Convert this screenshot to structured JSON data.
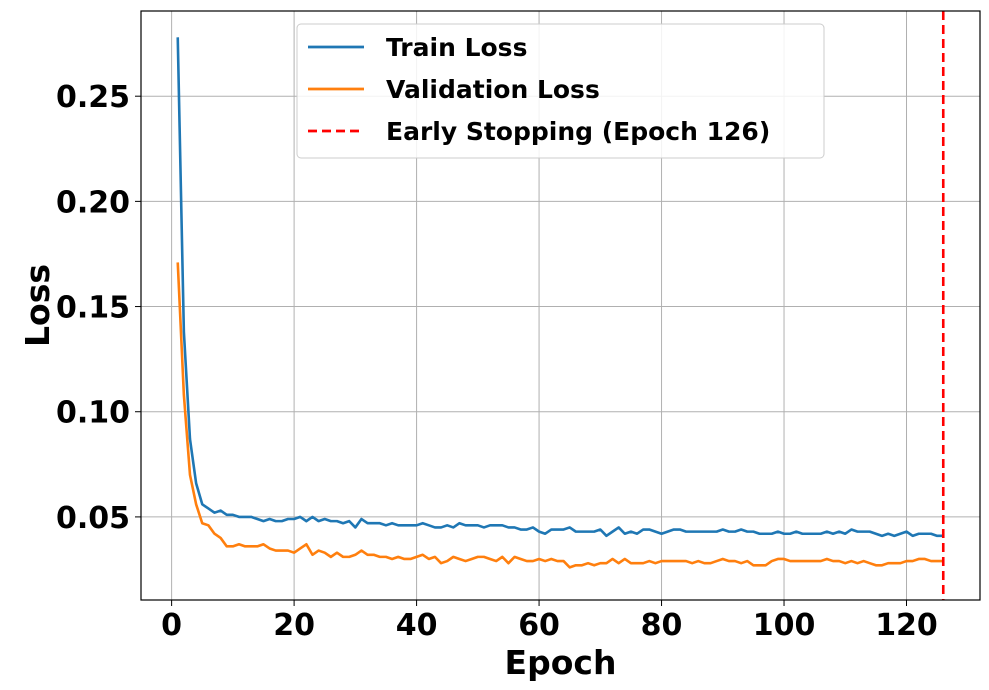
{
  "chart_data": {
    "type": "line",
    "xlabel": "Epoch",
    "ylabel": "Loss",
    "xlim": [
      -5,
      132
    ],
    "ylim": [
      0.0105,
      0.2905
    ],
    "x_ticks": [
      0,
      20,
      40,
      60,
      80,
      100,
      120
    ],
    "y_ticks": [
      0.05,
      0.1,
      0.15,
      0.2,
      0.25
    ],
    "y_tick_labels": [
      "0.05",
      "0.10",
      "0.15",
      "0.20",
      "0.25"
    ],
    "grid": true,
    "legend_position": "top-center",
    "series": [
      {
        "name": "Train Loss",
        "color": "#1f77b4",
        "style": "solid",
        "x": [
          1,
          2,
          3,
          4,
          5,
          6,
          7,
          8,
          9,
          10,
          11,
          12,
          13,
          14,
          15,
          16,
          17,
          18,
          19,
          20,
          21,
          22,
          23,
          24,
          25,
          26,
          27,
          28,
          29,
          30,
          31,
          32,
          33,
          34,
          35,
          36,
          37,
          38,
          39,
          40,
          41,
          42,
          43,
          44,
          45,
          46,
          47,
          48,
          49,
          50,
          51,
          52,
          53,
          54,
          55,
          56,
          57,
          58,
          59,
          60,
          61,
          62,
          63,
          64,
          65,
          66,
          67,
          68,
          69,
          70,
          71,
          72,
          73,
          74,
          75,
          76,
          77,
          78,
          79,
          80,
          81,
          82,
          83,
          84,
          85,
          86,
          87,
          88,
          89,
          90,
          91,
          92,
          93,
          94,
          95,
          96,
          97,
          98,
          99,
          100,
          101,
          102,
          103,
          104,
          105,
          106,
          107,
          108,
          109,
          110,
          111,
          112,
          113,
          114,
          115,
          116,
          117,
          118,
          119,
          120,
          121,
          122,
          123,
          124,
          125,
          126
        ],
        "values": [
          0.278,
          0.138,
          0.087,
          0.066,
          0.056,
          0.054,
          0.052,
          0.053,
          0.051,
          0.051,
          0.05,
          0.05,
          0.05,
          0.049,
          0.048,
          0.049,
          0.048,
          0.048,
          0.049,
          0.049,
          0.05,
          0.048,
          0.05,
          0.048,
          0.049,
          0.048,
          0.048,
          0.047,
          0.048,
          0.045,
          0.049,
          0.047,
          0.047,
          0.047,
          0.046,
          0.047,
          0.046,
          0.046,
          0.046,
          0.046,
          0.047,
          0.046,
          0.045,
          0.045,
          0.046,
          0.045,
          0.047,
          0.046,
          0.046,
          0.046,
          0.045,
          0.046,
          0.046,
          0.046,
          0.045,
          0.045,
          0.044,
          0.044,
          0.045,
          0.043,
          0.042,
          0.044,
          0.044,
          0.044,
          0.045,
          0.043,
          0.043,
          0.043,
          0.043,
          0.044,
          0.041,
          0.043,
          0.045,
          0.042,
          0.043,
          0.042,
          0.044,
          0.044,
          0.043,
          0.042,
          0.043,
          0.044,
          0.044,
          0.043,
          0.043,
          0.043,
          0.043,
          0.043,
          0.043,
          0.044,
          0.043,
          0.043,
          0.044,
          0.043,
          0.043,
          0.042,
          0.042,
          0.042,
          0.043,
          0.042,
          0.042,
          0.043,
          0.042,
          0.042,
          0.042,
          0.042,
          0.043,
          0.042,
          0.043,
          0.042,
          0.044,
          0.043,
          0.043,
          0.043,
          0.042,
          0.041,
          0.042,
          0.041,
          0.042,
          0.043,
          0.041,
          0.042,
          0.042,
          0.042,
          0.041,
          0.041
        ]
      },
      {
        "name": "Validation Loss",
        "color": "#ff7f0e",
        "style": "solid",
        "x": [
          1,
          2,
          3,
          4,
          5,
          6,
          7,
          8,
          9,
          10,
          11,
          12,
          13,
          14,
          15,
          16,
          17,
          18,
          19,
          20,
          21,
          22,
          23,
          24,
          25,
          26,
          27,
          28,
          29,
          30,
          31,
          32,
          33,
          34,
          35,
          36,
          37,
          38,
          39,
          40,
          41,
          42,
          43,
          44,
          45,
          46,
          47,
          48,
          49,
          50,
          51,
          52,
          53,
          54,
          55,
          56,
          57,
          58,
          59,
          60,
          61,
          62,
          63,
          64,
          65,
          66,
          67,
          68,
          69,
          70,
          71,
          72,
          73,
          74,
          75,
          76,
          77,
          78,
          79,
          80,
          81,
          82,
          83,
          84,
          85,
          86,
          87,
          88,
          89,
          90,
          91,
          92,
          93,
          94,
          95,
          96,
          97,
          98,
          99,
          100,
          101,
          102,
          103,
          104,
          105,
          106,
          107,
          108,
          109,
          110,
          111,
          112,
          113,
          114,
          115,
          116,
          117,
          118,
          119,
          120,
          121,
          122,
          123,
          124,
          125,
          126
        ],
        "values": [
          0.171,
          0.108,
          0.07,
          0.056,
          0.047,
          0.046,
          0.042,
          0.04,
          0.036,
          0.036,
          0.037,
          0.036,
          0.036,
          0.036,
          0.037,
          0.035,
          0.034,
          0.034,
          0.034,
          0.033,
          0.035,
          0.037,
          0.032,
          0.034,
          0.033,
          0.031,
          0.033,
          0.031,
          0.031,
          0.032,
          0.034,
          0.032,
          0.032,
          0.031,
          0.031,
          0.03,
          0.031,
          0.03,
          0.03,
          0.031,
          0.032,
          0.03,
          0.031,
          0.028,
          0.029,
          0.031,
          0.03,
          0.029,
          0.03,
          0.031,
          0.031,
          0.03,
          0.029,
          0.031,
          0.028,
          0.031,
          0.03,
          0.029,
          0.029,
          0.03,
          0.029,
          0.03,
          0.029,
          0.029,
          0.026,
          0.027,
          0.027,
          0.028,
          0.027,
          0.028,
          0.028,
          0.03,
          0.028,
          0.03,
          0.028,
          0.028,
          0.028,
          0.029,
          0.028,
          0.029,
          0.029,
          0.029,
          0.029,
          0.029,
          0.028,
          0.029,
          0.028,
          0.028,
          0.029,
          0.03,
          0.029,
          0.029,
          0.028,
          0.029,
          0.027,
          0.027,
          0.027,
          0.029,
          0.03,
          0.03,
          0.029,
          0.029,
          0.029,
          0.029,
          0.029,
          0.029,
          0.03,
          0.029,
          0.029,
          0.028,
          0.029,
          0.028,
          0.029,
          0.028,
          0.027,
          0.027,
          0.028,
          0.028,
          0.028,
          0.029,
          0.029,
          0.03,
          0.03,
          0.029,
          0.029,
          0.029
        ]
      },
      {
        "name": "Early Stopping (Epoch 126)",
        "color": "#ff0000",
        "style": "dashed",
        "vline_x": 126
      }
    ]
  }
}
